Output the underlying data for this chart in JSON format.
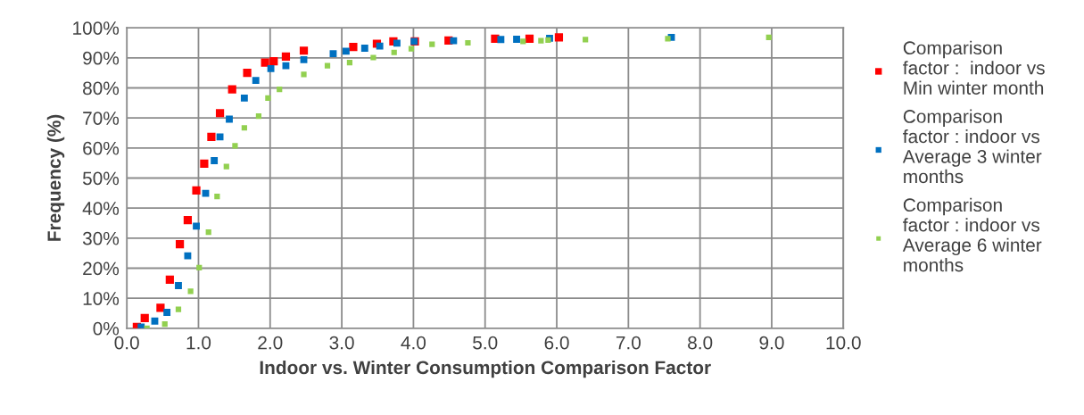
{
  "chart_data": {
    "type": "scatter",
    "xlabel": "Indoor vs. Winter Consumption Comparison Factor",
    "ylabel": "Frequency (%)",
    "xlim": [
      0,
      10
    ],
    "ylim": [
      0,
      100
    ],
    "xticks": [
      {
        "value": 0,
        "label": "0.0"
      },
      {
        "value": 1,
        "label": "1.0"
      },
      {
        "value": 2,
        "label": "2.0"
      },
      {
        "value": 3,
        "label": "3.0"
      },
      {
        "value": 4,
        "label": "4.0"
      },
      {
        "value": 5,
        "label": "5.0"
      },
      {
        "value": 6,
        "label": "6.0"
      },
      {
        "value": 7,
        "label": "7.0"
      },
      {
        "value": 8,
        "label": "8.0"
      },
      {
        "value": 9,
        "label": "9.0"
      },
      {
        "value": 10,
        "label": "10.0"
      }
    ],
    "yticks": [
      {
        "value": 0,
        "label": "0%"
      },
      {
        "value": 10,
        "label": "10%"
      },
      {
        "value": 20,
        "label": "20%"
      },
      {
        "value": 30,
        "label": "30%"
      },
      {
        "value": 40,
        "label": "40%"
      },
      {
        "value": 50,
        "label": "50%"
      },
      {
        "value": 60,
        "label": "60%"
      },
      {
        "value": 70,
        "label": "70%"
      },
      {
        "value": 80,
        "label": "80%"
      },
      {
        "value": 90,
        "label": "90%"
      },
      {
        "value": 100,
        "label": "100%"
      }
    ],
    "grid": true,
    "legend": "right",
    "marker": "square",
    "series": [
      {
        "name": "Comparison\nfactor :  indoor vs\nMin winter month",
        "color": "#ff0000",
        "x": [
          0.14,
          0.25,
          0.47,
          0.6,
          0.74,
          0.85,
          0.97,
          1.08,
          1.18,
          1.3,
          1.47,
          1.68,
          1.93,
          2.05,
          2.22,
          2.47,
          3.16,
          3.49,
          3.72,
          4.02,
          4.49,
          5.14,
          5.62,
          6.03
        ],
        "values": [
          0.4,
          3.4,
          6.8,
          16.2,
          28,
          36,
          45.9,
          54.8,
          63.7,
          71.6,
          79.5,
          85,
          88.4,
          88.9,
          90.4,
          92.4,
          93.6,
          94.7,
          95.5,
          95.5,
          95.8,
          96.4,
          96.4,
          96.8
        ]
      },
      {
        "name": "Comparison\nfactor : indoor vs\nAverage 3 winter\nmonths",
        "color": "#0070c0",
        "x": [
          0.2,
          0.39,
          0.56,
          0.72,
          0.85,
          0.97,
          1.1,
          1.22,
          1.3,
          1.43,
          1.64,
          1.8,
          2.01,
          2.22,
          2.47,
          2.88,
          3.06,
          3.32,
          3.53,
          3.77,
          4.01,
          4.56,
          5.22,
          5.44,
          5.9,
          7.6
        ],
        "values": [
          0.4,
          2.4,
          5.3,
          14.2,
          24.1,
          34,
          44.9,
          55.8,
          63.7,
          69.6,
          76.6,
          82.5,
          86.4,
          87.4,
          89.4,
          91.4,
          92.2,
          93.2,
          93.9,
          94.9,
          95.5,
          95.7,
          96.1,
          96.2,
          96.5,
          96.8
        ]
      },
      {
        "name": "Comparison\nfactor : indoor vs\nAverage 6 winter\nmonths",
        "color": "#92d050",
        "x": [
          0.28,
          0.53,
          0.72,
          0.89,
          1.01,
          1.14,
          1.26,
          1.39,
          1.51,
          1.64,
          1.84,
          1.97,
          2.13,
          2.47,
          2.8,
          3.11,
          3.44,
          3.73,
          3.97,
          4.26,
          4.76,
          5.53,
          5.78,
          5.88,
          6.4,
          7.55,
          8.96
        ],
        "values": [
          0,
          1.4,
          6.3,
          12.3,
          20.2,
          32,
          43.9,
          53.8,
          60.7,
          66.7,
          70.6,
          76.6,
          79.5,
          84.5,
          87.4,
          88.4,
          90.1,
          91.8,
          93,
          94.5,
          95,
          95.5,
          95.7,
          95.9,
          96.1,
          96.4,
          96.8
        ]
      }
    ]
  }
}
